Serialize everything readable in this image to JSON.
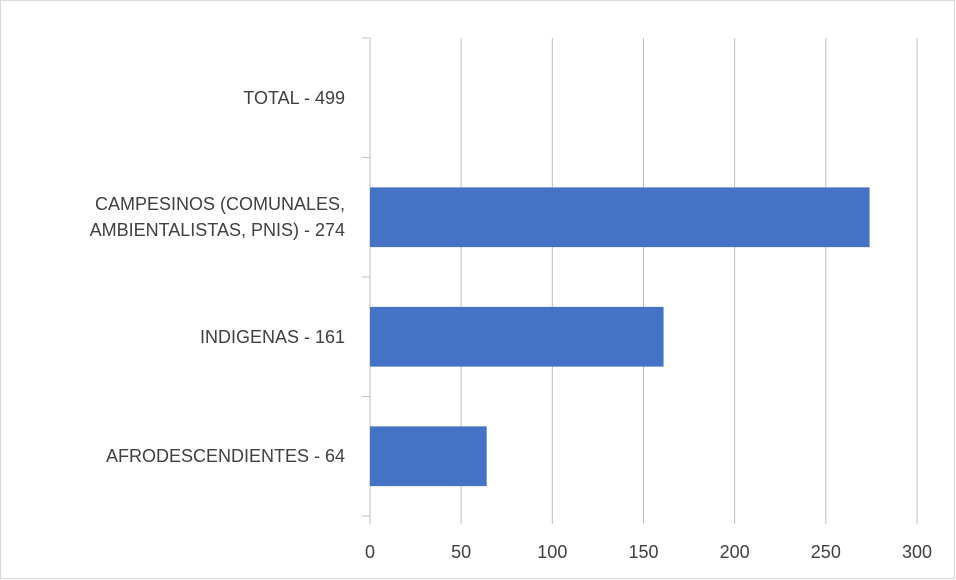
{
  "chart_data": {
    "type": "bar",
    "orientation": "horizontal",
    "categories": [
      "TOTAL - 499",
      "CAMPESINOS (COMUNALES, AMBIENTALISTAS, PNIS) - 274",
      "INDIGENAS - 161",
      "AFRODESCENDIENTES - 64"
    ],
    "values": [
      null,
      274,
      161,
      64
    ],
    "color": "#4472c4",
    "xlim": [
      0,
      300
    ],
    "xticks": [
      0,
      50,
      100,
      150,
      200,
      250,
      300
    ],
    "grid": true
  }
}
